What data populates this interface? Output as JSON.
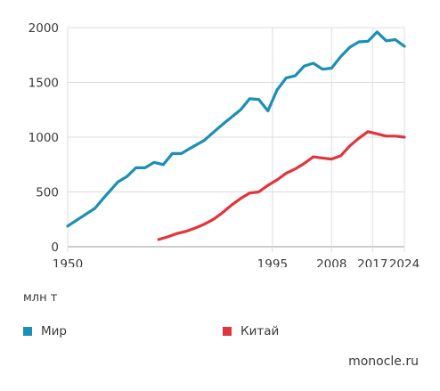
{
  "chart_data": {
    "type": "line",
    "title": "",
    "xlabel": "",
    "ylabel": "млн т",
    "xlim": [
      1950,
      2024
    ],
    "ylim": [
      0,
      2000
    ],
    "xticks": [
      1950,
      1995,
      2008,
      2017,
      2024
    ],
    "yticks": [
      0,
      500,
      1000,
      1500,
      2000
    ],
    "grid": true,
    "legend_position": "bottom",
    "series": [
      {
        "name": "Мир",
        "color": "#1b8fb5",
        "x": [
          1950,
          1953,
          1956,
          1958,
          1961,
          1963,
          1965,
          1967,
          1969,
          1971,
          1973,
          1975,
          1977,
          1980,
          1983,
          1985,
          1988,
          1990,
          1992,
          1994,
          1996,
          1998,
          2000,
          2002,
          2004,
          2006,
          2008,
          2010,
          2012,
          2014,
          2016,
          2018,
          2020,
          2022,
          2024
        ],
        "values": [
          189,
          270,
          350,
          450,
          590,
          640,
          720,
          720,
          770,
          750,
          850,
          850,
          900,
          970,
          1080,
          1150,
          1250,
          1350,
          1345,
          1240,
          1430,
          1540,
          1560,
          1650,
          1675,
          1620,
          1630,
          1735,
          1820,
          1870,
          1875,
          1960,
          1880,
          1890,
          1830
        ]
      },
      {
        "name": "Китай",
        "color": "#e2343c",
        "x": [
          1970,
          1972,
          1974,
          1976,
          1978,
          1980,
          1982,
          1984,
          1986,
          1988,
          1990,
          1992,
          1994,
          1996,
          1998,
          2000,
          2002,
          2004,
          2006,
          2008,
          2010,
          2012,
          2014,
          2016,
          2018,
          2020,
          2022,
          2024
        ],
        "values": [
          66,
          90,
          120,
          140,
          170,
          205,
          250,
          310,
          380,
          440,
          490,
          500,
          560,
          610,
          670,
          710,
          760,
          820,
          810,
          800,
          830,
          920,
          990,
          1050,
          1030,
          1010,
          1010,
          1000
        ]
      }
    ]
  },
  "unit_label": "млн т",
  "legend": [
    {
      "label": "Мир",
      "color": "#1b8fb5"
    },
    {
      "label": "Китай",
      "color": "#e2343c"
    }
  ],
  "source": "monocle.ru"
}
